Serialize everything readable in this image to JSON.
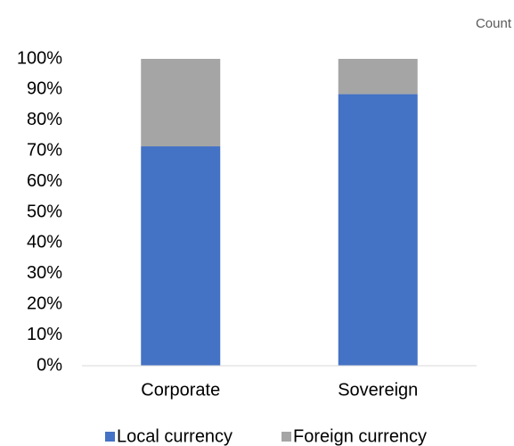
{
  "chart_data": {
    "type": "stacked_bar",
    "subtitle": "Count",
    "categories": [
      "Corporate",
      "Sovereign"
    ],
    "series": [
      {
        "name": "Local currency",
        "color": "#4472c4",
        "values": [
          71.5,
          88.5
        ]
      },
      {
        "name": "Foreign currency",
        "color": "#a5a5a5",
        "values": [
          28.5,
          11.5
        ]
      }
    ],
    "ylim": [
      0,
      100
    ],
    "yticks": [
      {
        "value": 0,
        "label": "0%"
      },
      {
        "value": 10,
        "label": "10%"
      },
      {
        "value": 20,
        "label": "20%"
      },
      {
        "value": 30,
        "label": "30%"
      },
      {
        "value": 40,
        "label": "40%"
      },
      {
        "value": 50,
        "label": "50%"
      },
      {
        "value": 60,
        "label": "60%"
      },
      {
        "value": 70,
        "label": "70%"
      },
      {
        "value": 80,
        "label": "80%"
      },
      {
        "value": 90,
        "label": "90%"
      },
      {
        "value": 100,
        "label": "100%"
      }
    ],
    "legend": "bottom"
  }
}
